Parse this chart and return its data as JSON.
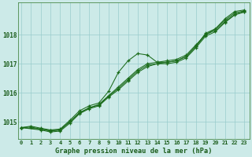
{
  "title": "Graphe pression niveau de la mer (hPa)",
  "background_color": "#cceae8",
  "grid_color": "#99cccc",
  "line_color": "#1a6b1a",
  "tick_color": "#1a5c1a",
  "x_ticks": [
    0,
    1,
    2,
    3,
    4,
    5,
    6,
    7,
    8,
    9,
    10,
    11,
    12,
    13,
    14,
    15,
    16,
    17,
    18,
    19,
    20,
    21,
    22,
    23
  ],
  "y_ticks": [
    1015,
    1016,
    1017,
    1018
  ],
  "ylim": [
    1014.4,
    1019.1
  ],
  "xlim": [
    -0.3,
    23.5
  ],
  "line1_x": [
    0,
    1,
    2,
    3,
    4,
    5,
    6,
    7,
    8,
    9,
    10,
    11,
    12,
    13,
    14,
    15,
    16,
    17,
    18,
    19,
    20,
    21,
    22,
    23
  ],
  "line1_y": [
    1014.8,
    1014.85,
    1014.78,
    1014.72,
    1014.75,
    1015.05,
    1015.38,
    1015.55,
    1015.65,
    1016.05,
    1016.7,
    1017.1,
    1017.35,
    1017.3,
    1017.05,
    1017.05,
    1017.1,
    1017.25,
    1017.6,
    1018.05,
    1018.2,
    1018.55,
    1018.8,
    1018.85
  ],
  "line2_x": [
    0,
    1,
    2,
    3,
    4,
    5,
    6,
    7,
    8,
    9,
    10,
    11,
    12,
    13,
    14,
    15,
    16,
    17,
    18,
    19,
    20,
    21,
    22,
    23
  ],
  "line2_y": [
    1014.8,
    1014.82,
    1014.75,
    1014.68,
    1014.72,
    1015.0,
    1015.32,
    1015.48,
    1015.6,
    1015.9,
    1016.2,
    1016.5,
    1016.8,
    1017.0,
    1017.05,
    1017.1,
    1017.15,
    1017.3,
    1017.65,
    1018.0,
    1018.2,
    1018.5,
    1018.75,
    1018.82
  ],
  "line3_x": [
    0,
    2,
    3,
    4,
    5,
    6,
    7,
    8,
    9,
    10,
    11,
    12,
    13,
    14,
    15,
    16,
    17,
    18,
    19,
    20,
    21,
    22,
    23
  ],
  "line3_y": [
    1014.8,
    1014.75,
    1014.7,
    1014.72,
    1015.0,
    1015.3,
    1015.48,
    1015.58,
    1015.88,
    1016.15,
    1016.45,
    1016.75,
    1016.95,
    1017.0,
    1017.05,
    1017.1,
    1017.25,
    1017.6,
    1018.0,
    1018.15,
    1018.45,
    1018.7,
    1018.8
  ],
  "line4_x": [
    0,
    2,
    3,
    4,
    5,
    6,
    7,
    8,
    9,
    10,
    11,
    12,
    13,
    14,
    15,
    16,
    17,
    18,
    19,
    20,
    21,
    22,
    23
  ],
  "line4_y": [
    1014.8,
    1014.72,
    1014.65,
    1014.68,
    1014.95,
    1015.28,
    1015.45,
    1015.55,
    1015.85,
    1016.1,
    1016.4,
    1016.7,
    1016.9,
    1017.0,
    1017.0,
    1017.05,
    1017.2,
    1017.55,
    1017.95,
    1018.1,
    1018.42,
    1018.68,
    1018.78
  ]
}
